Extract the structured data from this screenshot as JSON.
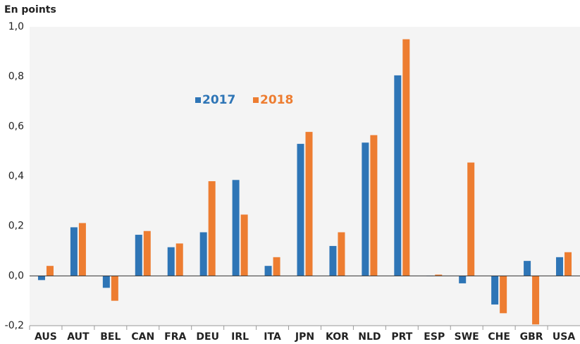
{
  "chart_data": {
    "type": "bar",
    "title": "En points",
    "categories": [
      "AUS",
      "AUT",
      "BEL",
      "CAN",
      "FRA",
      "DEU",
      "IRL",
      "ITA",
      "JPN",
      "KOR",
      "NLD",
      "PRT",
      "ESP",
      "SWE",
      "CHE",
      "GBR",
      "USA"
    ],
    "series": [
      {
        "name": "2017",
        "color": "#2e75b6",
        "values": [
          -0.017,
          0.195,
          -0.048,
          0.165,
          0.115,
          0.175,
          0.385,
          0.04,
          0.53,
          0.12,
          0.535,
          0.805,
          0,
          -0.03,
          -0.115,
          0.06,
          0.075
        ]
      },
      {
        "name": "2018",
        "color": "#ed7d31",
        "values": [
          0.04,
          0.212,
          -0.1,
          0.18,
          0.13,
          0.38,
          0.246,
          0.075,
          0.578,
          0.175,
          0.565,
          0.95,
          0.005,
          0.455,
          -0.15,
          -0.195,
          0.095
        ]
      }
    ],
    "ylim": [
      -0.2,
      1.0
    ],
    "yticks": [
      {
        "value": -0.2,
        "label": "-0,2"
      },
      {
        "value": 0,
        "label": "0,0"
      },
      {
        "value": 0.2,
        "label": "0,2"
      },
      {
        "value": 0.4,
        "label": "0,4"
      },
      {
        "value": 0.6,
        "label": "0,6"
      },
      {
        "value": 0.8,
        "label": "0,8"
      },
      {
        "value": 1.0,
        "label": "1,0"
      }
    ],
    "grid": false
  }
}
